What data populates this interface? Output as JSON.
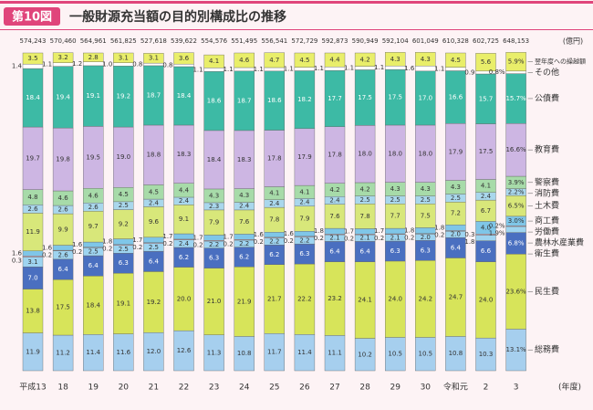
{
  "badge": "第10図",
  "title": "一般財源充当額の目的別構成比の推移",
  "chart_data": {
    "type": "stacked_bar",
    "categories": [
      "平成13",
      "18",
      "19",
      "20",
      "21",
      "22",
      "23",
      "24",
      "25",
      "26",
      "27",
      "28",
      "29",
      "30",
      "令和元",
      "2",
      "3"
    ],
    "unit": "(億円)",
    "x_unit": "(年度)",
    "totals": {
      "values": [
        574243,
        570460,
        564961,
        561825,
        527618,
        539622,
        554576,
        551495,
        556541,
        572729,
        592873,
        590949,
        592104,
        601049,
        610328,
        602725,
        648153
      ],
      "value_labels": [
        "574,243",
        "570,460",
        "564,961",
        "561,825",
        "527,618",
        "539,622",
        "554,576",
        "551,495",
        "556,541",
        "572,729",
        "592,873",
        "590,949",
        "592,104",
        "601,049",
        "610,328",
        "602,725",
        "648,153"
      ]
    },
    "ylim": [
      0,
      100
    ],
    "series": [
      {
        "name": "翌年度への繰越額",
        "color": "#e9ee6a",
        "values": [
          3.5,
          3.2,
          2.8,
          3.1,
          3.1,
          3.6,
          4.1,
          4.6,
          4.7,
          4.5,
          4.4,
          4.2,
          4.3,
          4.3,
          4.5,
          5.6,
          5.9
        ],
        "value_labels": [
          "3.5",
          "3.2",
          "2.8",
          "3.1",
          "3.1",
          "3.6",
          "4.1",
          "4.6",
          "4.7",
          "4.5",
          "4.4",
          "4.2",
          "4.3",
          "4.3",
          "4.5",
          "5.6",
          "5.9%"
        ]
      },
      {
        "name": "その他",
        "color": "#ffffff",
        "values": [
          1.4,
          1.1,
          1.2,
          1.0,
          0.8,
          0.8,
          1.1,
          1.1,
          1.1,
          1.1,
          1.1,
          1.1,
          1.1,
          1.6,
          1.1,
          0.9,
          0.8
        ],
        "value_labels": [
          "1.4",
          "1.1",
          "1.2",
          "1.0",
          "0.8",
          "0.8",
          "1.1",
          "1.1",
          "1.1",
          "1.1",
          "1.1",
          "1.1",
          "1.1",
          "1.6",
          "1.1",
          "0.9",
          "0.8%"
        ]
      },
      {
        "name": "公債費",
        "color": "#3dbaa5",
        "values": [
          18.4,
          19.4,
          19.1,
          19.2,
          18.7,
          18.4,
          18.6,
          18.7,
          18.6,
          18.2,
          17.7,
          17.5,
          17.5,
          17.0,
          16.6,
          15.7,
          15.7
        ],
        "value_labels": [
          "18.4",
          "19.4",
          "19.1",
          "19.2",
          "18.7",
          "18.4",
          "18.6",
          "18.7",
          "18.6",
          "18.2",
          "17.7",
          "17.5",
          "17.5",
          "17.0",
          "16.6",
          "15.7",
          "15.7%"
        ]
      },
      {
        "name": "教育費",
        "color": "#cdb6e3",
        "values": [
          19.7,
          19.8,
          19.5,
          19.0,
          18.8,
          18.3,
          18.4,
          18.3,
          17.8,
          17.9,
          17.8,
          18.0,
          18.0,
          18.0,
          17.9,
          17.5,
          16.6
        ],
        "value_labels": [
          "19.7",
          "19.8",
          "19.5",
          "19.0",
          "18.8",
          "18.3",
          "18.4",
          "18.3",
          "17.8",
          "17.9",
          "17.8",
          "18.0",
          "18.0",
          "18.0",
          "17.9",
          "17.5",
          "16.6%"
        ]
      },
      {
        "name": "警察費",
        "color": "#a7dba9",
        "values": [
          4.8,
          4.6,
          4.6,
          4.5,
          4.5,
          4.4,
          4.3,
          4.3,
          4.1,
          4.1,
          4.2,
          4.2,
          4.3,
          4.3,
          4.3,
          4.1,
          3.9
        ],
        "value_labels": [
          "4.8",
          "4.6",
          "4.6",
          "4.5",
          "4.5",
          "4.4",
          "4.3",
          "4.3",
          "4.1",
          "4.1",
          "4.2",
          "4.2",
          "4.3",
          "4.3",
          "4.3",
          "4.1",
          "3.9%"
        ]
      },
      {
        "name": "消防費",
        "color": "#a9d7ec",
        "values": [
          2.6,
          2.6,
          2.6,
          2.5,
          2.4,
          2.4,
          2.3,
          2.4,
          2.4,
          2.4,
          2.4,
          2.5,
          2.5,
          2.5,
          2.5,
          2.4,
          2.2
        ],
        "value_labels": [
          "2.6",
          "2.6",
          "2.6",
          "2.5",
          "2.4",
          "2.4",
          "2.3",
          "2.4",
          "2.4",
          "2.4",
          "2.4",
          "2.5",
          "2.5",
          "2.5",
          "2.5",
          "2.4",
          "2.2%"
        ]
      },
      {
        "name": "土木費",
        "color": "#d8e77a",
        "values": [
          11.9,
          9.9,
          9.7,
          9.2,
          9.6,
          9.1,
          7.9,
          7.6,
          7.8,
          7.9,
          7.6,
          7.8,
          7.7,
          7.5,
          7.2,
          6.7,
          6.5
        ],
        "value_labels": [
          "11.9",
          "9.9",
          "9.7",
          "9.2",
          "9.6",
          "9.1",
          "7.9",
          "7.6",
          "7.8",
          "7.9",
          "7.6",
          "7.8",
          "7.7",
          "7.5",
          "7.2",
          "6.7",
          "6.5%"
        ]
      },
      {
        "name": "商工費",
        "color": "#7fc6e8",
        "values": [
          1.6,
          1.6,
          1.6,
          1.8,
          1.7,
          1.7,
          1.7,
          1.7,
          1.6,
          1.6,
          1.8,
          1.7,
          1.7,
          1.8,
          1.8,
          4.0,
          3.0
        ],
        "value_labels": [
          "1.6",
          "1.6",
          "1.6",
          "1.8",
          "1.7",
          "1.7",
          "1.7",
          "1.7",
          "1.6",
          "1.6",
          "1.8",
          "1.7",
          "1.7",
          "1.8",
          "1.8",
          "4.0",
          "3.0%"
        ]
      },
      {
        "name": "労働費",
        "color": "#f4b7c8",
        "values": [
          0.3,
          0.2,
          0.2,
          0.2,
          0.2,
          0.2,
          0.2,
          0.2,
          0.2,
          0.2,
          0.2,
          0.2,
          0.2,
          0.2,
          0.2,
          0.3,
          0.2
        ],
        "value_labels": [
          "0.3",
          "0.2",
          "0.2",
          "0.2",
          "0.2",
          "0.2",
          "0.2",
          "0.2",
          "0.2",
          "0.2",
          "0.2",
          "0.2",
          "0.2",
          "0.2",
          "0.2",
          "0.3",
          "0.2%"
        ]
      },
      {
        "name": "農林水産業費",
        "color": "#9ed4f0",
        "values": [
          3.1,
          2.6,
          2.5,
          2.5,
          2.5,
          2.4,
          2.2,
          2.2,
          2.2,
          2.2,
          2.1,
          2.1,
          2.1,
          2.0,
          2.0,
          1.8,
          1.9
        ],
        "value_labels": [
          "3.1",
          "2.6",
          "2.5",
          "2.5",
          "2.5",
          "2.4",
          "2.2",
          "2.2",
          "2.2",
          "2.2",
          "2.1",
          "2.1",
          "2.1",
          "2.0",
          "2.0",
          "1.8",
          "1.9%"
        ]
      },
      {
        "name": "衛生費",
        "color": "#4a6fc0",
        "values": [
          7.0,
          6.4,
          6.4,
          6.3,
          6.4,
          6.2,
          6.3,
          6.2,
          6.2,
          6.3,
          6.4,
          6.4,
          6.3,
          6.3,
          6.4,
          6.6,
          6.8
        ],
        "value_labels": [
          "7.0",
          "6.4",
          "6.4",
          "6.3",
          "6.4",
          "6.2",
          "6.3",
          "6.2",
          "6.2",
          "6.3",
          "6.4",
          "6.4",
          "6.3",
          "6.3",
          "6.4",
          "6.6",
          "6.8%"
        ]
      },
      {
        "name": "民生費",
        "color": "#d7e45a",
        "values": [
          13.8,
          17.5,
          18.4,
          19.1,
          19.2,
          20.0,
          21.0,
          21.9,
          21.7,
          22.2,
          23.2,
          24.1,
          24.0,
          24.2,
          24.7,
          24.0,
          23.6
        ],
        "value_labels": [
          "13.8",
          "17.5",
          "18.4",
          "19.1",
          "19.2",
          "20.0",
          "21.0",
          "21.9",
          "21.7",
          "22.2",
          "23.2",
          "24.1",
          "24.0",
          "24.2",
          "24.7",
          "24.0",
          "23.6%"
        ]
      },
      {
        "name": "総務費",
        "color": "#a6cfee",
        "values": [
          11.9,
          11.2,
          11.4,
          11.6,
          12.0,
          12.6,
          11.3,
          10.8,
          11.7,
          11.4,
          11.1,
          10.2,
          10.5,
          10.5,
          10.8,
          10.3,
          13.1
        ],
        "value_labels": [
          "11.9",
          "11.2",
          "11.4",
          "11.6",
          "12.0",
          "12.6",
          "11.3",
          "10.8",
          "11.7",
          "11.4",
          "11.1",
          "10.2",
          "10.5",
          "10.5",
          "10.8",
          "10.3",
          "13.1%"
        ]
      }
    ]
  }
}
